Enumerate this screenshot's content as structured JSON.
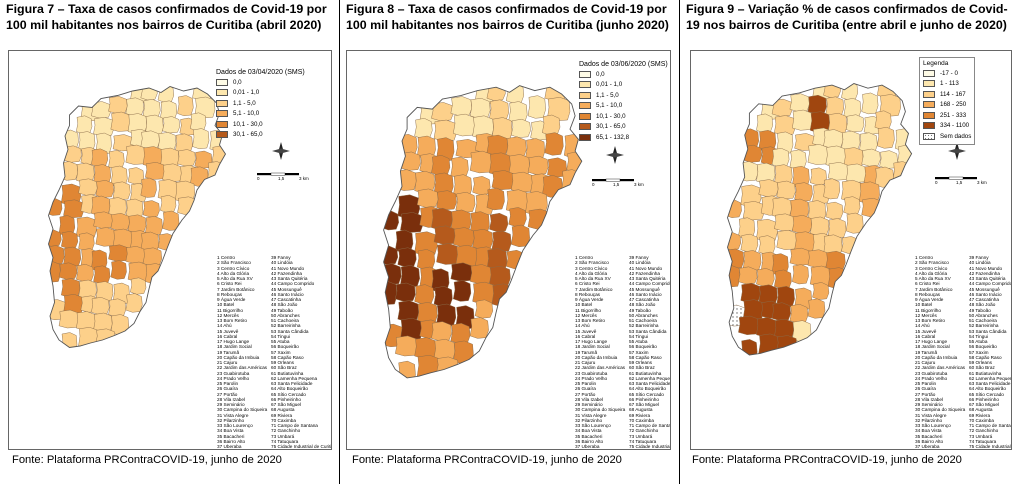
{
  "figures": [
    {
      "title": "Figura 7 – Taxa de casos confirmados de Covid-19 por 100 mil habitantes nos bairros de Curitiba (abril 2020)",
      "legend_title": "Dados de 03/04/2020 (SMS)",
      "legend": [
        {
          "label": "0,0",
          "color": "#fefbe6"
        },
        {
          "label": "0,01 - 1,0",
          "color": "#fde7ae"
        },
        {
          "label": "1,1 - 5,0",
          "color": "#fdd08a"
        },
        {
          "label": "5,1 - 10,0",
          "color": "#f5ac5b"
        },
        {
          "label": "10,1 - 30,0",
          "color": "#e08634"
        },
        {
          "label": "30,1 - 65,0",
          "color": "#b55a1c"
        }
      ],
      "source": "Fonte: Plataforma PRContraCOVID-19, junho de 2020"
    },
    {
      "title": "Figura 8 – Taxa de casos confirmados de Covid-19 por 100 mil habitantes nos bairros de Curitiba (junho 2020)",
      "legend_title": "Dados de 03/06/2020 (SMS)",
      "legend": [
        {
          "label": "0,0",
          "color": "#fefbe6"
        },
        {
          "label": "0,01 - 1,0",
          "color": "#fde7ae"
        },
        {
          "label": "1,1 - 5,0",
          "color": "#fdd08a"
        },
        {
          "label": "5,1 - 10,0",
          "color": "#f5ac5b"
        },
        {
          "label": "10,1 - 30,0",
          "color": "#e08634"
        },
        {
          "label": "30,1 - 65,0",
          "color": "#b55a1c"
        },
        {
          "label": "65,1 - 132,8",
          "color": "#7a2f0c"
        }
      ],
      "source": "Fonte: Plataforma PRContraCOVID-19, junho de 2020"
    },
    {
      "title": "Figura 9 – Variação % de casos confirmados de Covid-19 nos bairros de Curitiba (entre abril e junho de 2020)",
      "legend_title": "Legenda",
      "legend": [
        {
          "label": "-17 - 0",
          "color": "#fefbe6"
        },
        {
          "label": "1 - 113",
          "color": "#fde7ae"
        },
        {
          "label": "114 - 167",
          "color": "#fdd08a"
        },
        {
          "label": "168 - 250",
          "color": "#f5ac5b"
        },
        {
          "label": "251 - 333",
          "color": "#e08634"
        },
        {
          "label": "334 - 1100",
          "color": "#a0460f"
        },
        {
          "label": "Sem dados",
          "color": "#ffffff",
          "pattern": "dots"
        }
      ],
      "source": "Fonte: Plataforma PRContraCOVID-19, junho de 2020"
    }
  ],
  "scale_labels": [
    "0",
    "1,5",
    "3 km"
  ],
  "neighborhoods": [
    [
      "1 Centro",
      "2 São Francisco",
      "3 Centro Cívico",
      "4 Alto da Glória",
      "5 Alto da Rua XV",
      "6 Cristo Rei",
      "7 Jardim Botânico",
      "8 Rebouças",
      "9 Água Verde",
      "10 Batel",
      "11 Bigorrilho",
      "12 Mercês",
      "13 Bom Retiro",
      "14 Ahú",
      "15 Juvevê",
      "16 Cabral",
      "17 Hugo Lange",
      "18 Jardim Social",
      "19 Tarumã",
      "20 Capão da Imbuia",
      "21 Cajuru",
      "22 Jardim das Américas",
      "23 Guabirotuba",
      "24 Prado Velho",
      "25 Parolin",
      "26 Guaíra",
      "27 Portão",
      "28 Vila Izabel",
      "29 Seminário",
      "30 Campina do Siqueira",
      "31 Vista Alegre",
      "32 Pilarzinho",
      "33 São Lourenço",
      "34 Boa Vista",
      "35 Bacacheri",
      "36 Bairro Alto",
      "37 Uberaba",
      "38 Hauer"
    ],
    [
      "39 Fanny",
      "40 Lindóia",
      "41 Novo Mundo",
      "42 Fazendinha",
      "43 Santa Quitéria",
      "44 Campo Comprido",
      "45 Mossunguê",
      "46 Santo Inácio",
      "47 Cascatinha",
      "48 São João",
      "49 Taboão",
      "50 Abranches",
      "51 Cachoeira",
      "52 Barreirinha",
      "53 Santa Cândida",
      "54 Tingui",
      "55 Atuba",
      "56 Boqueirão",
      "57 Xaxim",
      "58 Capão Raso",
      "59 Orleans",
      "60 São Braz",
      "61 Butiatuvinha",
      "62 Lamenha Pequena",
      "63 Santa Felicidade",
      "64 Alto Boqueirão",
      "65 Sítio Cercado",
      "66 Pinheirinho",
      "67 São Miguel",
      "68 Augusta",
      "69 Riviera",
      "70 Caximba",
      "71 Campo de Santana",
      "72 Ganchinho",
      "73 Umbará",
      "74 Tatuquara",
      "75 Cidade Industrial de Curitiba"
    ]
  ]
}
